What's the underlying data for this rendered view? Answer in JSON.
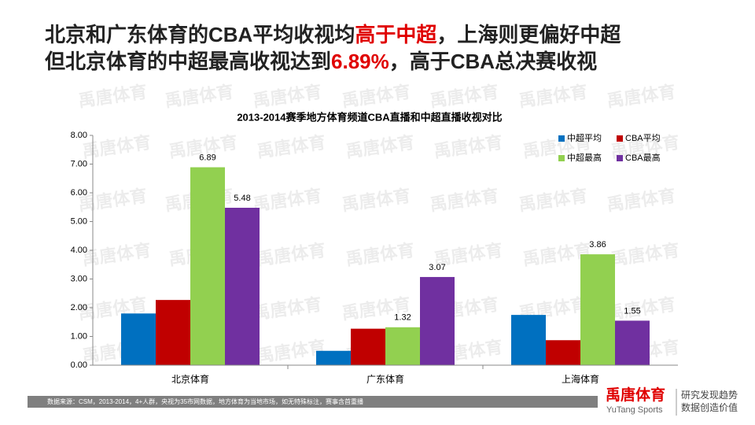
{
  "header": {
    "line1": [
      "北京和广东体育的CBA平均收视均",
      "高于中超",
      "，上海则更偏好中超"
    ],
    "line2": [
      "但北京体育的中超最高收视达到",
      "6.89%",
      "，高于CBA总决赛收视"
    ]
  },
  "watermark": "禹唐体育",
  "footer": {
    "source": "数据来源：CSM，2013-2014，4+人群，央视为35市网数据，地方体育为当地市场，如无特殊标注，赛事含首重播",
    "logo": "禹唐体育",
    "logo_en": "YuTang Sports",
    "slogan1": "研究发现趋势",
    "slogan2": "数据创造价值"
  },
  "chart_data": {
    "type": "bar",
    "title": "2013-2014赛季地方体育频道CBA直播和中超直播收视对比",
    "categories": [
      "北京体育",
      "广东体育",
      "上海体育"
    ],
    "series": [
      {
        "name": "中超平均",
        "color": "#0070c0",
        "values": [
          1.8,
          0.5,
          1.75
        ],
        "data_labels": false
      },
      {
        "name": "CBA平均",
        "color": "#c00000",
        "values": [
          2.27,
          1.27,
          0.87
        ],
        "data_labels": false
      },
      {
        "name": "中超最高",
        "color": "#92d050",
        "values": [
          6.89,
          1.32,
          3.86
        ],
        "data_labels": true
      },
      {
        "name": "CBA最高",
        "color": "#7030a0",
        "values": [
          5.48,
          3.07,
          1.55
        ],
        "data_labels": true
      }
    ],
    "ylim": [
      0,
      8
    ],
    "yticks": [
      {
        "value": 0,
        "label": "0.00"
      },
      {
        "value": 1,
        "label": "1.00"
      },
      {
        "value": 2,
        "label": "2.00"
      },
      {
        "value": 3,
        "label": "3.00"
      },
      {
        "value": 4,
        "label": "4.00"
      },
      {
        "value": 5,
        "label": "5.00"
      },
      {
        "value": 6,
        "label": "6.00"
      },
      {
        "value": 7,
        "label": "7.00"
      },
      {
        "value": 8,
        "label": "8.00"
      }
    ],
    "legend": "top-right",
    "grid": false
  }
}
